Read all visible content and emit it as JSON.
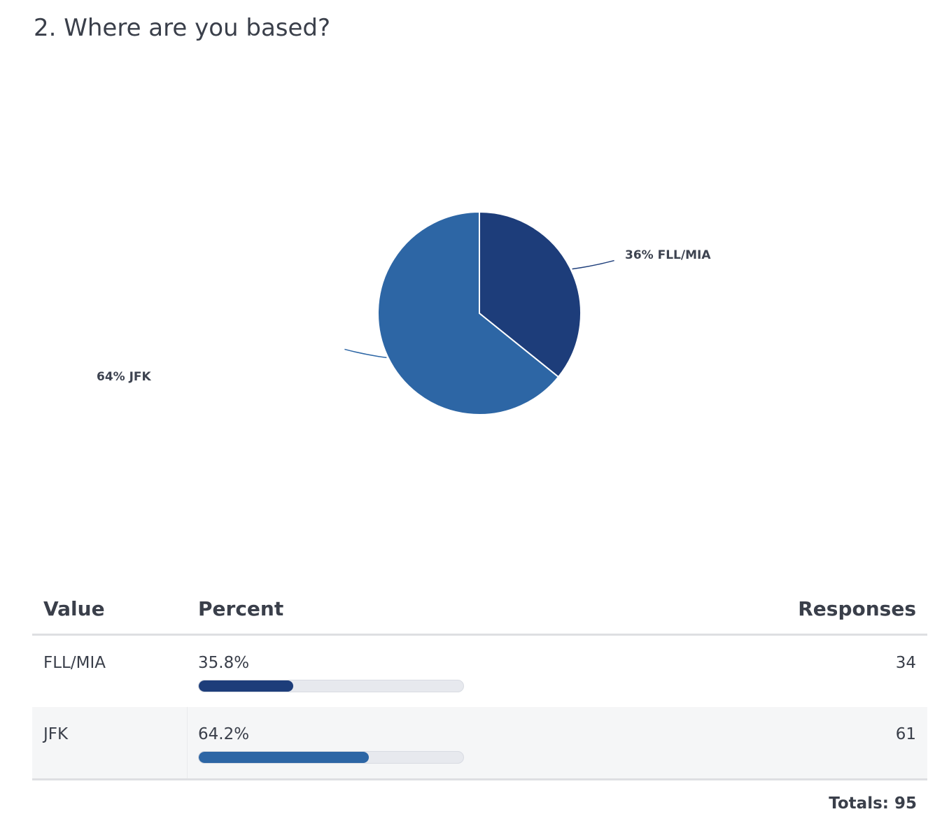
{
  "question": {
    "title": "2. Where are you based?"
  },
  "chart_data": {
    "type": "pie",
    "slices": [
      {
        "label": "FLL/MIA",
        "value": 35.8,
        "display": "36% FLL/MIA",
        "color": "#1d3d7a"
      },
      {
        "label": "JFK",
        "value": 64.2,
        "display": "64% JFK",
        "color": "#2d66a5"
      }
    ]
  },
  "table": {
    "headers": {
      "value": "Value",
      "percent": "Percent",
      "responses": "Responses"
    },
    "rows": [
      {
        "value": "FLL/MIA",
        "percent": "35.8%",
        "percent_value": 35.8,
        "responses": "34",
        "color": "#1d3d7a"
      },
      {
        "value": "JFK",
        "percent": "64.2%",
        "percent_value": 64.2,
        "responses": "61",
        "color": "#2d66a5"
      }
    ],
    "totals": "Totals: 95"
  }
}
